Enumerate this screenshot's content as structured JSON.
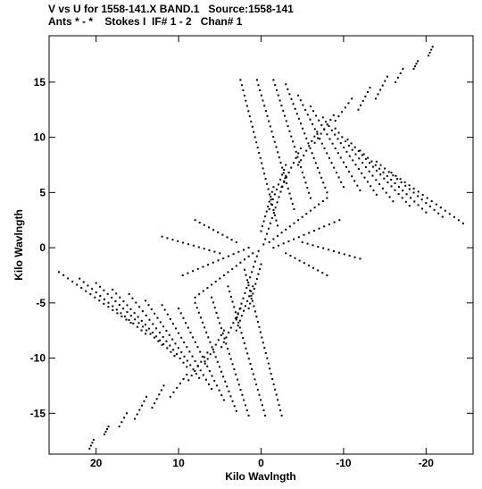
{
  "header": {
    "line1": "V vs U for 1558-141.X BAND.1   Source:1558-141",
    "line2": "Ants * - *    Stokes I  IF# 1 - 2   Chan# 1"
  },
  "chart_data": {
    "type": "scatter",
    "title": "V vs U for 1558-141.X BAND.1   Source:1558-141",
    "subtitle": "Ants * - *    Stokes I  IF# 1 - 2   Chan# 1",
    "xlabel": "Kilo Wavlngth",
    "ylabel": "Kilo Wavlngth",
    "xlim": [
      25.7,
      -25.7
    ],
    "ylim": [
      -18.7,
      19.2
    ],
    "x_reversed": true,
    "xticks": [
      20,
      10,
      0,
      -10,
      -20
    ],
    "xtick_labels": [
      "20",
      "10",
      "0",
      "-10",
      "-20"
    ],
    "yticks": [
      15,
      10,
      5,
      0,
      -5,
      -10,
      -15
    ],
    "ytick_labels": [
      "15",
      "10",
      "5",
      "0",
      "-5",
      "-10",
      "-15"
    ],
    "grid": false,
    "legend": "none",
    "marker_color": "#000000",
    "tracks": [
      {
        "start": [
          -20.8,
          18.2
        ],
        "end": [
          -20.3,
          17.4
        ]
      },
      {
        "start": [
          -19.0,
          16.9
        ],
        "end": [
          -18.5,
          16.2
        ]
      },
      {
        "start": [
          -17.2,
          16.2
        ],
        "end": [
          -16.3,
          15.0
        ]
      },
      {
        "start": [
          -15.3,
          15.5
        ],
        "end": [
          -13.9,
          13.5
        ]
      },
      {
        "start": [
          -13.2,
          14.5
        ],
        "end": [
          -11.8,
          12.5
        ]
      },
      {
        "start": [
          -11.0,
          13.5
        ],
        "end": [
          -9.0,
          11.5
        ]
      },
      {
        "start": [
          -8.8,
          12.0
        ],
        "end": [
          -6.5,
          9.5
        ]
      },
      {
        "start": [
          -6.8,
          10.5
        ],
        "end": [
          -4.5,
          7.5
        ]
      },
      {
        "start": [
          -4.8,
          9.0
        ],
        "end": [
          -2.5,
          5.5
        ]
      },
      {
        "start": [
          -3.0,
          7.5
        ],
        "end": [
          -1.0,
          3.5
        ]
      },
      {
        "start": [
          -1.5,
          5.5
        ],
        "end": [
          0.0,
          1.5
        ]
      },
      {
        "start": [
          20.8,
          -18.2
        ],
        "end": [
          20.3,
          -17.4
        ]
      },
      {
        "start": [
          19.0,
          -16.9
        ],
        "end": [
          18.5,
          -16.2
        ]
      },
      {
        "start": [
          17.2,
          -16.2
        ],
        "end": [
          16.3,
          -15.0
        ]
      },
      {
        "start": [
          15.3,
          -15.5
        ],
        "end": [
          13.9,
          -13.5
        ]
      },
      {
        "start": [
          13.2,
          -14.5
        ],
        "end": [
          11.8,
          -12.5
        ]
      },
      {
        "start": [
          11.0,
          -13.5
        ],
        "end": [
          9.0,
          -11.5
        ]
      },
      {
        "start": [
          8.8,
          -12.0
        ],
        "end": [
          6.5,
          -9.5
        ]
      },
      {
        "start": [
          6.8,
          -10.5
        ],
        "end": [
          4.5,
          -7.5
        ]
      },
      {
        "start": [
          4.8,
          -9.0
        ],
        "end": [
          2.5,
          -5.5
        ]
      },
      {
        "start": [
          3.0,
          -7.5
        ],
        "end": [
          1.0,
          -3.5
        ]
      },
      {
        "start": [
          1.5,
          -5.5
        ],
        "end": [
          0.0,
          -1.5
        ]
      },
      {
        "start": [
          -24.5,
          2.2
        ],
        "end": [
          -15.8,
          6.8
        ]
      },
      {
        "start": [
          -22.0,
          2.8
        ],
        "end": [
          -14.0,
          7.8
        ]
      },
      {
        "start": [
          -20.0,
          3.2
        ],
        "end": [
          -12.0,
          8.8
        ]
      },
      {
        "start": [
          -18.0,
          3.8
        ],
        "end": [
          -10.5,
          9.8
        ]
      },
      {
        "start": [
          -16.0,
          4.2
        ],
        "end": [
          -9.0,
          10.8
        ]
      },
      {
        "start": [
          -14.0,
          4.8
        ],
        "end": [
          -7.5,
          11.8
        ]
      },
      {
        "start": [
          -12.0,
          5.2
        ],
        "end": [
          -6.0,
          12.8
        ]
      },
      {
        "start": [
          -10.0,
          5.5
        ],
        "end": [
          -4.5,
          13.8
        ]
      },
      {
        "start": [
          -8.0,
          5.0
        ],
        "end": [
          -3.0,
          14.8
        ]
      },
      {
        "start": [
          -6.0,
          4.5
        ],
        "end": [
          -1.5,
          15.2
        ]
      },
      {
        "start": [
          -4.0,
          3.5
        ],
        "end": [
          0.5,
          15.2
        ]
      },
      {
        "start": [
          -2.0,
          2.0
        ],
        "end": [
          2.5,
          15.2
        ]
      },
      {
        "start": [
          24.5,
          -2.2
        ],
        "end": [
          15.8,
          -6.8
        ]
      },
      {
        "start": [
          22.0,
          -2.8
        ],
        "end": [
          14.0,
          -7.8
        ]
      },
      {
        "start": [
          20.0,
          -3.2
        ],
        "end": [
          12.0,
          -8.8
        ]
      },
      {
        "start": [
          18.0,
          -3.8
        ],
        "end": [
          10.5,
          -9.8
        ]
      },
      {
        "start": [
          16.0,
          -4.2
        ],
        "end": [
          9.0,
          -10.8
        ]
      },
      {
        "start": [
          14.0,
          -4.8
        ],
        "end": [
          7.5,
          -11.8
        ]
      },
      {
        "start": [
          12.0,
          -5.2
        ],
        "end": [
          6.0,
          -12.8
        ]
      },
      {
        "start": [
          10.0,
          -5.5
        ],
        "end": [
          4.5,
          -13.8
        ]
      },
      {
        "start": [
          8.0,
          -5.0
        ],
        "end": [
          3.0,
          -14.8
        ]
      },
      {
        "start": [
          6.0,
          -4.5
        ],
        "end": [
          1.5,
          -15.2
        ]
      },
      {
        "start": [
          4.0,
          -3.5
        ],
        "end": [
          -0.5,
          -15.2
        ]
      },
      {
        "start": [
          2.0,
          -2.0
        ],
        "end": [
          -2.5,
          -15.2
        ]
      },
      {
        "start": [
          -1.0,
          0.5
        ],
        "end": [
          -8.0,
          4.5
        ]
      },
      {
        "start": [
          -1.5,
          0.0
        ],
        "end": [
          -9.5,
          2.5
        ]
      },
      {
        "start": [
          1.0,
          -0.5
        ],
        "end": [
          8.0,
          -4.5
        ]
      },
      {
        "start": [
          1.5,
          0.0
        ],
        "end": [
          9.5,
          -2.5
        ]
      },
      {
        "start": [
          -0.3,
          0.3
        ],
        "end": [
          -3.0,
          6.5
        ]
      },
      {
        "start": [
          0.3,
          -0.3
        ],
        "end": [
          3.0,
          -6.5
        ]
      },
      {
        "start": [
          -5.0,
          0.5
        ],
        "end": [
          -12.0,
          -1.0
        ]
      },
      {
        "start": [
          5.0,
          -0.5
        ],
        "end": [
          12.0,
          1.0
        ]
      },
      {
        "start": [
          -3.0,
          -0.5
        ],
        "end": [
          -8.0,
          -2.5
        ]
      },
      {
        "start": [
          3.0,
          0.5
        ],
        "end": [
          8.0,
          2.5
        ]
      }
    ]
  }
}
